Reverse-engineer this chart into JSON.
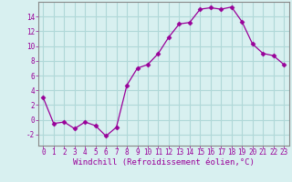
{
  "x": [
    0,
    1,
    2,
    3,
    4,
    5,
    6,
    7,
    8,
    9,
    10,
    11,
    12,
    13,
    14,
    15,
    16,
    17,
    18,
    19,
    20,
    21,
    22,
    23
  ],
  "y": [
    3,
    -0.5,
    -0.3,
    -1.2,
    -0.3,
    -0.8,
    -2.2,
    -1.0,
    4.7,
    7.0,
    7.5,
    9.0,
    11.2,
    13.0,
    13.2,
    15.0,
    15.2,
    15.0,
    15.3,
    13.3,
    10.3,
    9.0,
    8.7,
    7.5
  ],
  "line_color": "#990099",
  "marker": "D",
  "marker_size": 2.5,
  "background_color": "#d8f0f0",
  "grid_color": "#b0d8d8",
  "xlabel": "Windchill (Refroidissement éolien,°C)",
  "xlim": [
    -0.5,
    23.5
  ],
  "ylim": [
    -3.5,
    16.0
  ],
  "yticks": [
    -2,
    0,
    2,
    4,
    6,
    8,
    10,
    12,
    14
  ],
  "xticks": [
    0,
    1,
    2,
    3,
    4,
    5,
    6,
    7,
    8,
    9,
    10,
    11,
    12,
    13,
    14,
    15,
    16,
    17,
    18,
    19,
    20,
    21,
    22,
    23
  ],
  "tick_color": "#990099",
  "label_color": "#990099",
  "tick_fontsize": 5.5,
  "xlabel_fontsize": 6.5,
  "spine_color": "#888888"
}
